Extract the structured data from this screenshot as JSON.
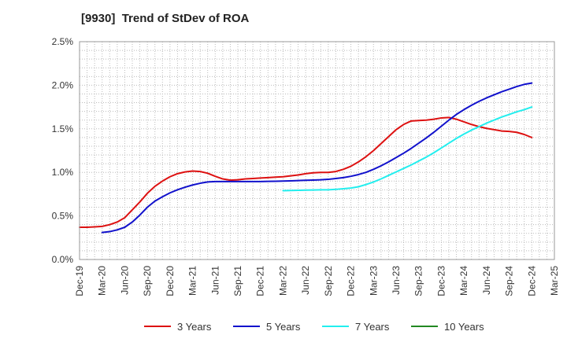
{
  "chart_data": {
    "type": "line",
    "title": "[9930]  Trend of StDev of ROA",
    "xlabel": "",
    "ylabel": "",
    "x_ticks": [
      "Dec-19",
      "Mar-20",
      "Jun-20",
      "Sep-20",
      "Dec-20",
      "Mar-21",
      "Jun-21",
      "Sep-21",
      "Dec-21",
      "Mar-22",
      "Jun-22",
      "Sep-22",
      "Dec-22",
      "Mar-23",
      "Jun-23",
      "Sep-23",
      "Dec-23",
      "Mar-24",
      "Jun-24",
      "Sep-24",
      "Dec-24",
      "Mar-25"
    ],
    "y_ticks": [
      "0.0%",
      "0.5%",
      "1.0%",
      "1.5%",
      "2.0%",
      "2.5%"
    ],
    "ylim": [
      0,
      2.5
    ],
    "y_unit": "%",
    "grid": "dotted",
    "legend_position": "bottom",
    "series": [
      {
        "name": "3 Years",
        "color": "#dd1111",
        "points": [
          {
            "x": "Dec-19",
            "y": 0.37
          },
          {
            "x": "Jan-20",
            "y": 0.37
          },
          {
            "x": "Feb-20",
            "y": 0.375
          },
          {
            "x": "Mar-20",
            "y": 0.38
          },
          {
            "x": "Apr-20",
            "y": 0.4
          },
          {
            "x": "May-20",
            "y": 0.43
          },
          {
            "x": "Jun-20",
            "y": 0.48
          },
          {
            "x": "Jul-20",
            "y": 0.57
          },
          {
            "x": "Aug-20",
            "y": 0.66
          },
          {
            "x": "Sep-20",
            "y": 0.76
          },
          {
            "x": "Oct-20",
            "y": 0.84
          },
          {
            "x": "Nov-20",
            "y": 0.9
          },
          {
            "x": "Dec-20",
            "y": 0.95
          },
          {
            "x": "Jan-21",
            "y": 0.985
          },
          {
            "x": "Feb-21",
            "y": 1.005
          },
          {
            "x": "Mar-21",
            "y": 1.015
          },
          {
            "x": "Apr-21",
            "y": 1.01
          },
          {
            "x": "May-21",
            "y": 0.99
          },
          {
            "x": "Jun-21",
            "y": 0.955
          },
          {
            "x": "Jul-21",
            "y": 0.925
          },
          {
            "x": "Aug-21",
            "y": 0.91
          },
          {
            "x": "Sep-21",
            "y": 0.915
          },
          {
            "x": "Oct-21",
            "y": 0.925
          },
          {
            "x": "Nov-21",
            "y": 0.93
          },
          {
            "x": "Dec-21",
            "y": 0.935
          },
          {
            "x": "Jan-22",
            "y": 0.94
          },
          {
            "x": "Feb-22",
            "y": 0.945
          },
          {
            "x": "Mar-22",
            "y": 0.95
          },
          {
            "x": "Apr-22",
            "y": 0.96
          },
          {
            "x": "May-22",
            "y": 0.97
          },
          {
            "x": "Jun-22",
            "y": 0.985
          },
          {
            "x": "Jul-22",
            "y": 0.995
          },
          {
            "x": "Aug-22",
            "y": 1.0
          },
          {
            "x": "Sep-22",
            "y": 1.0
          },
          {
            "x": "Oct-22",
            "y": 1.01
          },
          {
            "x": "Nov-22",
            "y": 1.035
          },
          {
            "x": "Dec-22",
            "y": 1.07
          },
          {
            "x": "Jan-23",
            "y": 1.12
          },
          {
            "x": "Feb-23",
            "y": 1.18
          },
          {
            "x": "Mar-23",
            "y": 1.25
          },
          {
            "x": "Apr-23",
            "y": 1.33
          },
          {
            "x": "May-23",
            "y": 1.41
          },
          {
            "x": "Jun-23",
            "y": 1.49
          },
          {
            "x": "Jul-23",
            "y": 1.55
          },
          {
            "x": "Aug-23",
            "y": 1.59
          },
          {
            "x": "Sep-23",
            "y": 1.595
          },
          {
            "x": "Oct-23",
            "y": 1.6
          },
          {
            "x": "Nov-23",
            "y": 1.61
          },
          {
            "x": "Dec-23",
            "y": 1.625
          },
          {
            "x": "Jan-24",
            "y": 1.63
          },
          {
            "x": "Feb-24",
            "y": 1.61
          },
          {
            "x": "Mar-24",
            "y": 1.58
          },
          {
            "x": "Apr-24",
            "y": 1.55
          },
          {
            "x": "May-24",
            "y": 1.525
          },
          {
            "x": "Jun-24",
            "y": 1.505
          },
          {
            "x": "Jul-24",
            "y": 1.49
          },
          {
            "x": "Aug-24",
            "y": 1.475
          },
          {
            "x": "Sep-24",
            "y": 1.47
          },
          {
            "x": "Oct-24",
            "y": 1.46
          },
          {
            "x": "Nov-24",
            "y": 1.435
          },
          {
            "x": "Dec-24",
            "y": 1.4
          }
        ]
      },
      {
        "name": "5 Years",
        "color": "#1111cc",
        "points": [
          {
            "x": "Mar-20",
            "y": 0.31
          },
          {
            "x": "Apr-20",
            "y": 0.32
          },
          {
            "x": "May-20",
            "y": 0.34
          },
          {
            "x": "Jun-20",
            "y": 0.37
          },
          {
            "x": "Jul-20",
            "y": 0.43
          },
          {
            "x": "Aug-20",
            "y": 0.51
          },
          {
            "x": "Sep-20",
            "y": 0.6
          },
          {
            "x": "Oct-20",
            "y": 0.67
          },
          {
            "x": "Nov-20",
            "y": 0.72
          },
          {
            "x": "Dec-20",
            "y": 0.765
          },
          {
            "x": "Jan-21",
            "y": 0.8
          },
          {
            "x": "Feb-21",
            "y": 0.83
          },
          {
            "x": "Mar-21",
            "y": 0.855
          },
          {
            "x": "Apr-21",
            "y": 0.875
          },
          {
            "x": "May-21",
            "y": 0.89
          },
          {
            "x": "Jun-21",
            "y": 0.895
          },
          {
            "x": "Jul-21",
            "y": 0.895
          },
          {
            "x": "Aug-21",
            "y": 0.895
          },
          {
            "x": "Sep-21",
            "y": 0.895
          },
          {
            "x": "Oct-21",
            "y": 0.895
          },
          {
            "x": "Nov-21",
            "y": 0.895
          },
          {
            "x": "Dec-21",
            "y": 0.895
          },
          {
            "x": "Jan-22",
            "y": 0.897
          },
          {
            "x": "Feb-22",
            "y": 0.898
          },
          {
            "x": "Mar-22",
            "y": 0.9
          },
          {
            "x": "Apr-22",
            "y": 0.903
          },
          {
            "x": "May-22",
            "y": 0.906
          },
          {
            "x": "Jun-22",
            "y": 0.909
          },
          {
            "x": "Jul-22",
            "y": 0.912
          },
          {
            "x": "Aug-22",
            "y": 0.915
          },
          {
            "x": "Sep-22",
            "y": 0.92
          },
          {
            "x": "Oct-22",
            "y": 0.93
          },
          {
            "x": "Nov-22",
            "y": 0.94
          },
          {
            "x": "Dec-22",
            "y": 0.955
          },
          {
            "x": "Jan-23",
            "y": 0.975
          },
          {
            "x": "Feb-23",
            "y": 1.0
          },
          {
            "x": "Mar-23",
            "y": 1.035
          },
          {
            "x": "Apr-23",
            "y": 1.075
          },
          {
            "x": "May-23",
            "y": 1.12
          },
          {
            "x": "Jun-23",
            "y": 1.17
          },
          {
            "x": "Jul-23",
            "y": 1.22
          },
          {
            "x": "Aug-23",
            "y": 1.275
          },
          {
            "x": "Sep-23",
            "y": 1.335
          },
          {
            "x": "Oct-23",
            "y": 1.395
          },
          {
            "x": "Nov-23",
            "y": 1.46
          },
          {
            "x": "Dec-23",
            "y": 1.53
          },
          {
            "x": "Jan-24",
            "y": 1.6
          },
          {
            "x": "Feb-24",
            "y": 1.665
          },
          {
            "x": "Mar-24",
            "y": 1.72
          },
          {
            "x": "Apr-24",
            "y": 1.77
          },
          {
            "x": "May-24",
            "y": 1.815
          },
          {
            "x": "Jun-24",
            "y": 1.855
          },
          {
            "x": "Jul-24",
            "y": 1.89
          },
          {
            "x": "Aug-24",
            "y": 1.925
          },
          {
            "x": "Sep-24",
            "y": 1.955
          },
          {
            "x": "Oct-24",
            "y": 1.985
          },
          {
            "x": "Nov-24",
            "y": 2.01
          },
          {
            "x": "Dec-24",
            "y": 2.025
          }
        ]
      },
      {
        "name": "7 Years",
        "color": "#22eeee",
        "points": [
          {
            "x": "Mar-22",
            "y": 0.79
          },
          {
            "x": "Apr-22",
            "y": 0.792
          },
          {
            "x": "May-22",
            "y": 0.794
          },
          {
            "x": "Jun-22",
            "y": 0.796
          },
          {
            "x": "Jul-22",
            "y": 0.798
          },
          {
            "x": "Aug-22",
            "y": 0.8
          },
          {
            "x": "Sep-22",
            "y": 0.8
          },
          {
            "x": "Oct-22",
            "y": 0.805
          },
          {
            "x": "Nov-22",
            "y": 0.812
          },
          {
            "x": "Dec-22",
            "y": 0.82
          },
          {
            "x": "Jan-23",
            "y": 0.835
          },
          {
            "x": "Feb-23",
            "y": 0.86
          },
          {
            "x": "Mar-23",
            "y": 0.89
          },
          {
            "x": "Apr-23",
            "y": 0.925
          },
          {
            "x": "May-23",
            "y": 0.965
          },
          {
            "x": "Jun-23",
            "y": 1.005
          },
          {
            "x": "Jul-23",
            "y": 1.045
          },
          {
            "x": "Aug-23",
            "y": 1.085
          },
          {
            "x": "Sep-23",
            "y": 1.13
          },
          {
            "x": "Oct-23",
            "y": 1.175
          },
          {
            "x": "Nov-23",
            "y": 1.225
          },
          {
            "x": "Dec-23",
            "y": 1.28
          },
          {
            "x": "Jan-24",
            "y": 1.335
          },
          {
            "x": "Feb-24",
            "y": 1.39
          },
          {
            "x": "Mar-24",
            "y": 1.44
          },
          {
            "x": "Apr-24",
            "y": 1.485
          },
          {
            "x": "May-24",
            "y": 1.525
          },
          {
            "x": "Jun-24",
            "y": 1.565
          },
          {
            "x": "Jul-24",
            "y": 1.6
          },
          {
            "x": "Aug-24",
            "y": 1.635
          },
          {
            "x": "Sep-24",
            "y": 1.665
          },
          {
            "x": "Oct-24",
            "y": 1.695
          },
          {
            "x": "Nov-24",
            "y": 1.72
          },
          {
            "x": "Dec-24",
            "y": 1.75
          }
        ]
      },
      {
        "name": "10 Years",
        "color": "#228822",
        "points": []
      }
    ]
  }
}
